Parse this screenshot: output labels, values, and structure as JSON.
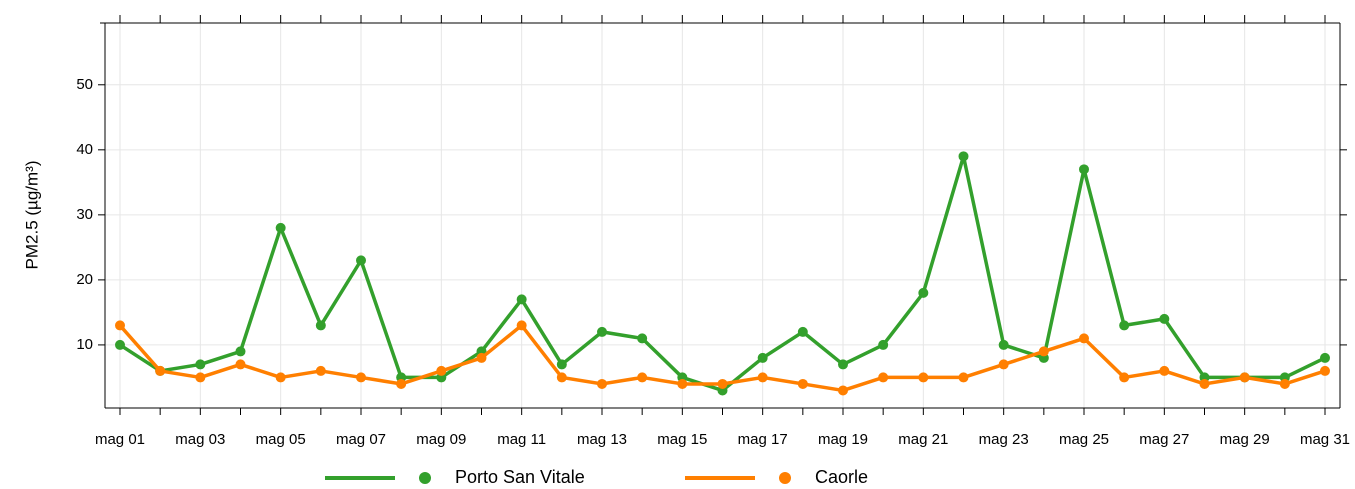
{
  "chart_data": {
    "type": "line",
    "y_label": "PM2.5 (µg/m³)",
    "categories": [
      "mag 01",
      null,
      "mag 03",
      null,
      "mag 05",
      null,
      "mag 07",
      null,
      "mag 09",
      null,
      "mag 11",
      null,
      "mag 13",
      null,
      "mag 15",
      null,
      "mag 17",
      null,
      "mag 19",
      null,
      "mag 21",
      null,
      "mag 23",
      null,
      "mag 25",
      null,
      "mag 27",
      null,
      "mag 29",
      null,
      "mag 31"
    ],
    "series": [
      {
        "name": "Porto San Vitale",
        "color": "#33a02c",
        "values": [
          10,
          6,
          7,
          9,
          28,
          13,
          23,
          5,
          5,
          9,
          17,
          7,
          12,
          11,
          5,
          3,
          8,
          12,
          7,
          10,
          18,
          39,
          10,
          8,
          37,
          13,
          14,
          5,
          5,
          5,
          8
        ]
      },
      {
        "name": "Caorle",
        "color": "#ff7f00",
        "values": [
          13,
          6,
          5,
          7,
          5,
          6,
          5,
          4,
          6,
          8,
          13,
          5,
          4,
          5,
          4,
          4,
          5,
          4,
          3,
          5,
          5,
          5,
          7,
          9,
          11,
          5,
          6,
          4,
          5,
          4,
          6
        ]
      }
    ],
    "ylim": [
      0.3,
      59.5
    ],
    "yticks": [
      10,
      20,
      30,
      40,
      50
    ],
    "grid": true,
    "legend": "bottom"
  }
}
